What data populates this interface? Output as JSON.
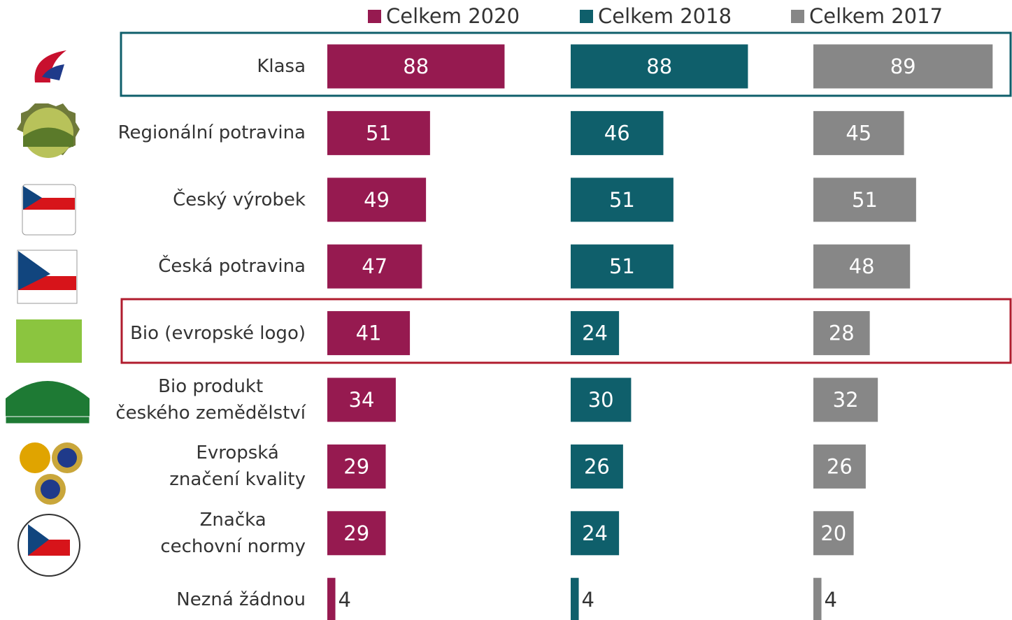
{
  "chart_data": {
    "type": "bar",
    "orientation": "horizontal",
    "categories": [
      "Klasa",
      "Regionální potravina",
      "Český výrobek",
      "Česká potravina",
      "Bio (evropské logo)",
      "Bio produkt\nčeského zemědělství",
      "Evropská\nznačení kvality",
      "Značka\ncechovní normy",
      "Nezná žádnou"
    ],
    "series": [
      {
        "name": "Celkem 2020",
        "color": "#961a50",
        "values": [
          88,
          51,
          49,
          47,
          41,
          34,
          29,
          29,
          4
        ]
      },
      {
        "name": "Celkem 2018",
        "color": "#0f5f6b",
        "values": [
          88,
          46,
          51,
          51,
          24,
          30,
          26,
          24,
          4
        ]
      },
      {
        "name": "Celkem 2017",
        "color": "#878787",
        "values": [
          89,
          45,
          51,
          48,
          28,
          32,
          26,
          20,
          4
        ]
      }
    ],
    "xlim": [
      0,
      100
    ]
  }
}
